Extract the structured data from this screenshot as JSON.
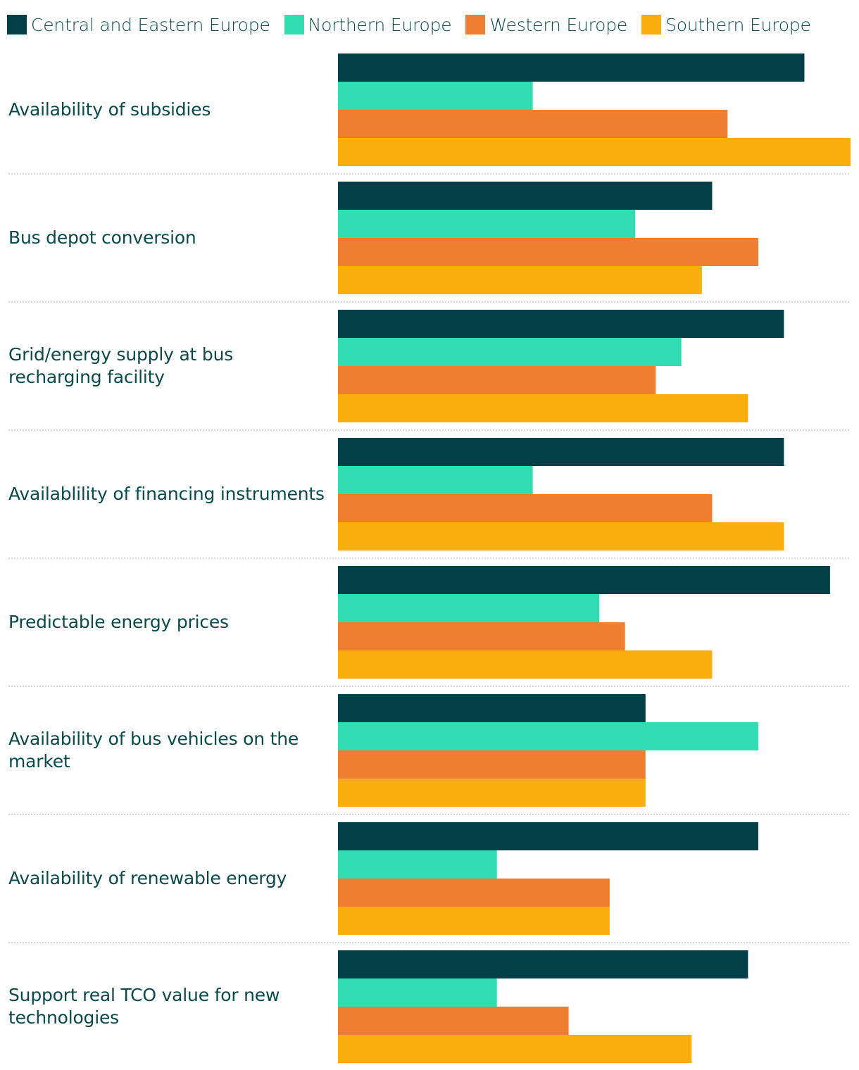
{
  "chart_data": {
    "type": "bar",
    "orientation": "horizontal",
    "title": "",
    "xlabel": "",
    "ylabel": "",
    "grid": false,
    "legend_position": "top",
    "xlim": [
      0,
      100
    ],
    "categories": [
      "Availability of subsidies",
      "Bus depot conversion",
      "Grid/energy supply at bus recharging facility",
      "Availablility of financing instruments",
      "Predictable energy prices",
      "Availability of bus vehicles on the market",
      "Availability of renewable energy",
      "Support real TCO value for new technologies"
    ],
    "series": [
      {
        "name": "Central and Eastern Europe",
        "color": "#023f47",
        "values": [
          91,
          73,
          87,
          87,
          96,
          60,
          82,
          80
        ]
      },
      {
        "name": "Northern Europe",
        "color": "#31deb1",
        "values": [
          38,
          58,
          67,
          38,
          51,
          82,
          31,
          31
        ]
      },
      {
        "name": "Western Europe",
        "color": "#ef7e32",
        "values": [
          76,
          82,
          62,
          73,
          56,
          60,
          53,
          45
        ]
      },
      {
        "name": "Southern Europe",
        "color": "#f9ae0e",
        "values": [
          100,
          71,
          80,
          87,
          73,
          60,
          53,
          69
        ]
      }
    ]
  }
}
